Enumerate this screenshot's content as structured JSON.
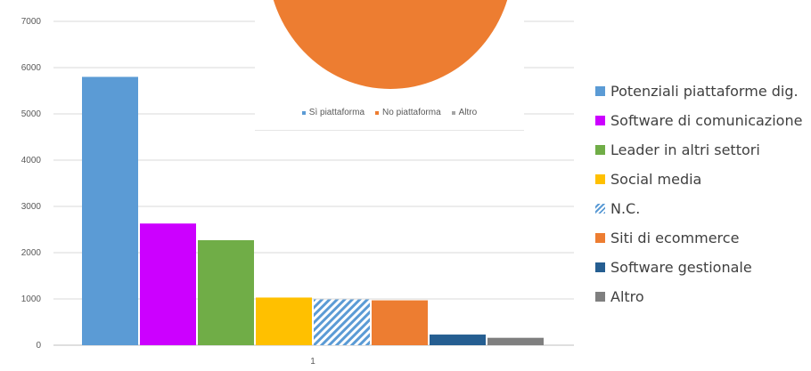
{
  "chart_data": {
    "type": "bar",
    "categories": [
      "1"
    ],
    "series": [
      {
        "name": "Potenziali piattaforme dig.",
        "color": "#5b9bd5",
        "values": [
          5800
        ]
      },
      {
        "name": "Software di comunicazione",
        "color": "#cc00ff",
        "values": [
          2630
        ]
      },
      {
        "name": "Leader in altri settori",
        "color": "#70ad47",
        "values": [
          2270
        ]
      },
      {
        "name": "Social media",
        "color": "#ffc000",
        "values": [
          1030
        ]
      },
      {
        "name": "N.C.",
        "color": "#5b9bd5",
        "pattern": "diagonal-stripes",
        "values": [
          990
        ]
      },
      {
        "name": "Siti di ecommerce",
        "color": "#ed7d31",
        "values": [
          970
        ]
      },
      {
        "name": "Software gestionale",
        "color": "#255e91",
        "values": [
          230
        ]
      },
      {
        "name": "Altro",
        "color": "#7f7f7f",
        "values": [
          160
        ]
      }
    ],
    "ylim": [
      0,
      7000
    ],
    "y_ticks": [
      "0",
      "1000",
      "2000",
      "3000",
      "4000",
      "5000",
      "6000",
      "7000"
    ],
    "grid": true,
    "legend_position": "right"
  },
  "overlay_pie": {
    "type": "pie",
    "legend": [
      {
        "label": "Sì piattaforma",
        "color": "#5b9bd5"
      },
      {
        "label": "No piattaforma",
        "color": "#ed7d31"
      },
      {
        "label": "Altro",
        "color": "#a5a5a5"
      }
    ],
    "visible_slice_color": "#ed7d31"
  }
}
